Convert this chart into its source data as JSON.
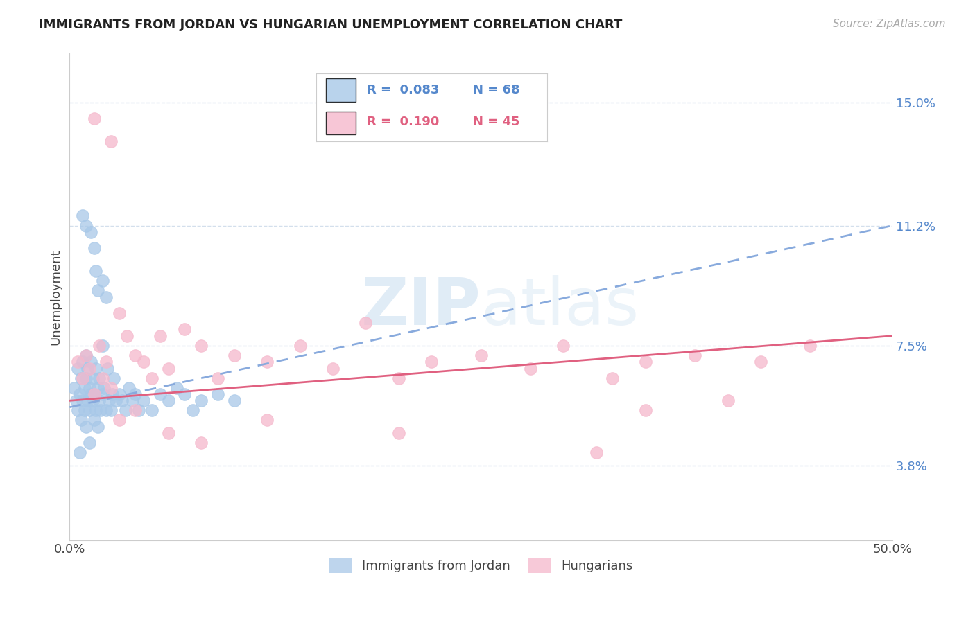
{
  "title": "IMMIGRANTS FROM JORDAN VS HUNGARIAN UNEMPLOYMENT CORRELATION CHART",
  "source_text": "Source: ZipAtlas.com",
  "ylabel": "Unemployment",
  "xlim": [
    0.0,
    50.0
  ],
  "ylim": [
    1.5,
    16.5
  ],
  "yticks": [
    3.8,
    7.5,
    11.2,
    15.0
  ],
  "ytick_labels": [
    "3.8%",
    "7.5%",
    "11.2%",
    "15.0%"
  ],
  "xtick_labels": [
    "0.0%",
    "50.0%"
  ],
  "legend_r1": "R =  0.083",
  "legend_n1": "N = 68",
  "legend_r2": "R =  0.190",
  "legend_n2": "N = 45",
  "blue_color": "#a8c8e8",
  "pink_color": "#f5b8cc",
  "trend_blue_color": "#88aadd",
  "trend_pink_color": "#e06080",
  "label_color": "#5588cc",
  "background_color": "#ffffff",
  "grid_color": "#c8d8e8",
  "watermark_color": "#c8ddf0",
  "blue_trend_y_start": 5.6,
  "blue_trend_y_end": 11.2,
  "pink_trend_y_start": 5.8,
  "pink_trend_y_end": 7.8,
  "blue_x": [
    0.3,
    0.4,
    0.5,
    0.5,
    0.6,
    0.7,
    0.7,
    0.8,
    0.8,
    0.9,
    0.9,
    1.0,
    1.0,
    1.0,
    1.1,
    1.1,
    1.2,
    1.2,
    1.3,
    1.3,
    1.4,
    1.4,
    1.5,
    1.5,
    1.6,
    1.6,
    1.7,
    1.7,
    1.8,
    1.8,
    1.9,
    2.0,
    2.0,
    2.1,
    2.2,
    2.3,
    2.4,
    2.5,
    2.6,
    2.7,
    2.8,
    3.0,
    3.2,
    3.4,
    3.6,
    3.8,
    4.0,
    4.2,
    4.5,
    5.0,
    5.5,
    6.0,
    6.5,
    7.0,
    7.5,
    8.0,
    9.0,
    10.0,
    1.5,
    1.6,
    1.7,
    2.0,
    2.2,
    1.3,
    0.8,
    1.0,
    0.6,
    1.2
  ],
  "blue_y": [
    6.2,
    5.8,
    5.5,
    6.8,
    6.0,
    5.2,
    6.5,
    5.8,
    7.0,
    5.5,
    6.2,
    5.0,
    6.5,
    7.2,
    5.8,
    6.8,
    6.2,
    5.5,
    6.0,
    7.0,
    5.8,
    6.5,
    5.2,
    6.0,
    5.5,
    6.8,
    6.2,
    5.0,
    5.8,
    6.5,
    5.5,
    6.0,
    7.5,
    6.2,
    5.5,
    6.8,
    5.8,
    5.5,
    6.0,
    6.5,
    5.8,
    6.0,
    5.8,
    5.5,
    6.2,
    5.8,
    6.0,
    5.5,
    5.8,
    5.5,
    6.0,
    5.8,
    6.2,
    6.0,
    5.5,
    5.8,
    6.0,
    5.8,
    10.5,
    9.8,
    9.2,
    9.5,
    9.0,
    11.0,
    11.5,
    11.2,
    4.2,
    4.5
  ],
  "pink_x": [
    0.5,
    0.8,
    1.0,
    1.2,
    1.5,
    1.8,
    2.0,
    2.2,
    2.5,
    3.0,
    3.5,
    4.0,
    4.5,
    5.0,
    5.5,
    6.0,
    7.0,
    8.0,
    9.0,
    10.0,
    12.0,
    14.0,
    16.0,
    18.0,
    20.0,
    22.0,
    25.0,
    28.0,
    30.0,
    33.0,
    35.0,
    38.0,
    40.0,
    42.0,
    45.0,
    3.0,
    4.0,
    6.0,
    8.0,
    12.0,
    20.0,
    35.0,
    2.5,
    1.5,
    32.0
  ],
  "pink_y": [
    7.0,
    6.5,
    7.2,
    6.8,
    6.0,
    7.5,
    6.5,
    7.0,
    6.2,
    8.5,
    7.8,
    7.2,
    7.0,
    6.5,
    7.8,
    6.8,
    8.0,
    7.5,
    6.5,
    7.2,
    7.0,
    7.5,
    6.8,
    8.2,
    6.5,
    7.0,
    7.2,
    6.8,
    7.5,
    6.5,
    7.0,
    7.2,
    5.8,
    7.0,
    7.5,
    5.2,
    5.5,
    4.8,
    4.5,
    5.2,
    4.8,
    5.5,
    13.8,
    14.5,
    4.2
  ]
}
